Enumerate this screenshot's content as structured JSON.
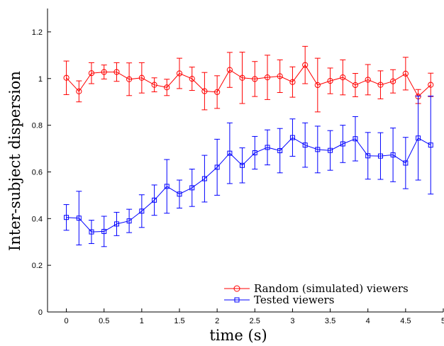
{
  "chart_data": {
    "type": "line",
    "xlabel": "time (s)",
    "ylabel": "Inter-subject dispersion",
    "xlim": [
      -0.25,
      5.0
    ],
    "ylim": [
      0,
      1.3
    ],
    "xticks": [
      0,
      0.5,
      1,
      1.5,
      2,
      2.5,
      3,
      3.5,
      4,
      4.5,
      5
    ],
    "xtick_labels": [
      "0",
      "0.5",
      "1",
      "1.5",
      "2",
      "2.5",
      "3",
      "3.5",
      "4",
      "4.5",
      "5"
    ],
    "yticks": [
      0,
      0.2,
      0.4,
      0.6,
      0.8,
      1,
      1.2
    ],
    "ytick_labels": [
      "0",
      "0.2",
      "0.4",
      "0.6",
      "0.8",
      "1",
      "1.2"
    ],
    "grid": false,
    "legend_position": "bottom-right",
    "x": [
      0,
      0.167,
      0.333,
      0.5,
      0.667,
      0.833,
      1.0,
      1.167,
      1.333,
      1.5,
      1.667,
      1.833,
      2.0,
      2.167,
      2.333,
      2.5,
      2.667,
      2.833,
      3.0,
      3.167,
      3.333,
      3.5,
      3.667,
      3.833,
      4.0,
      4.167,
      4.333,
      4.5,
      4.667,
      4.833
    ],
    "series": [
      {
        "name": "Random (simulated) viewers",
        "color": "#ff0000",
        "marker": "circle",
        "values": [
          1.003,
          0.945,
          1.023,
          1.028,
          1.028,
          0.997,
          1.003,
          0.973,
          0.962,
          1.022,
          0.999,
          0.946,
          0.942,
          1.037,
          1.003,
          0.998,
          1.005,
          1.01,
          0.985,
          1.058,
          0.972,
          0.99,
          1.005,
          0.972,
          0.995,
          0.973,
          0.988,
          1.021,
          0.923,
          0.973
        ],
        "errors": [
          0.072,
          0.045,
          0.045,
          0.03,
          0.04,
          0.07,
          0.065,
          0.03,
          0.035,
          0.065,
          0.05,
          0.08,
          0.07,
          0.075,
          0.11,
          0.075,
          0.095,
          0.07,
          0.065,
          0.08,
          0.115,
          0.055,
          0.075,
          0.05,
          0.065,
          0.06,
          0.05,
          0.07,
          0.03,
          0.05
        ]
      },
      {
        "name": "Tested viewers",
        "color": "#0000ff",
        "marker": "square",
        "values": [
          0.405,
          0.402,
          0.343,
          0.345,
          0.377,
          0.39,
          0.432,
          0.479,
          0.538,
          0.505,
          0.532,
          0.571,
          0.62,
          0.68,
          0.628,
          0.682,
          0.705,
          0.691,
          0.747,
          0.715,
          0.696,
          0.692,
          0.72,
          0.742,
          0.669,
          0.668,
          0.673,
          0.638,
          0.745,
          0.715
        ],
        "errors": [
          0.055,
          0.115,
          0.05,
          0.065,
          0.05,
          0.05,
          0.07,
          0.065,
          0.115,
          0.06,
          0.08,
          0.1,
          0.12,
          0.13,
          0.075,
          0.07,
          0.075,
          0.095,
          0.08,
          0.095,
          0.1,
          0.085,
          0.08,
          0.095,
          0.1,
          0.1,
          0.115,
          0.11,
          0.18,
          0.21
        ]
      }
    ]
  }
}
